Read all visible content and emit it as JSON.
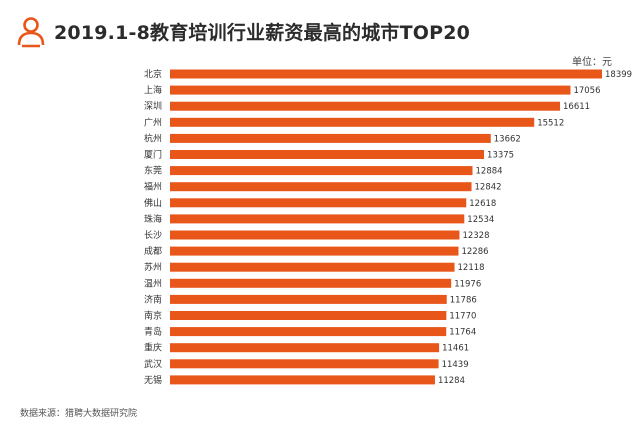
{
  "title": "2019.1-8教育培训行业薪资最高的城市TOP20",
  "unit_label": "单位：元",
  "source": "数据来源：猎聘大数据研究院",
  "colors": {
    "bar": "#e8561a",
    "logo": "#e8561a",
    "title": "#2b2b2b"
  },
  "icons": {
    "logo": "person-icon"
  },
  "chart_data": {
    "type": "bar",
    "orientation": "horizontal",
    "title": "2019.1-8教育培训行业薪资最高的城市TOP20",
    "unit": "单位：元",
    "categories": [
      "北京",
      "上海",
      "深圳",
      "广州",
      "杭州",
      "厦门",
      "东莞",
      "福州",
      "佛山",
      "珠海",
      "长沙",
      "成都",
      "苏州",
      "温州",
      "济南",
      "南京",
      "青岛",
      "重庆",
      "武汉",
      "无锡"
    ],
    "values": [
      18399,
      17056,
      16611,
      15512,
      13662,
      13375,
      12884,
      12842,
      12618,
      12534,
      12328,
      12286,
      12118,
      11976,
      11786,
      11770,
      11764,
      11461,
      11439,
      11284
    ],
    "xlim": [
      0,
      18399
    ],
    "grid": false,
    "legend": "none"
  }
}
